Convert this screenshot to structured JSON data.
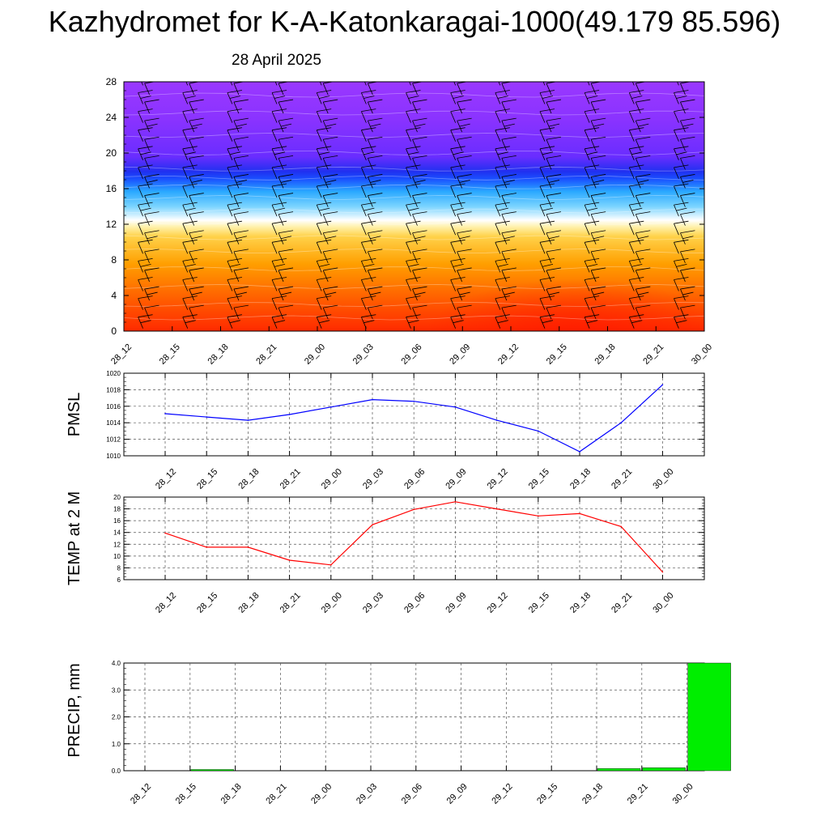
{
  "title": "Kazhydromet for K-A-Katonkaragai-1000(49.179 85.596)",
  "subtitle": "28 April 2025",
  "chart_data": [
    {
      "type": "heatmap",
      "title": "",
      "x_labels": [
        "28_12",
        "28_15",
        "28_18",
        "28_21",
        "29_00",
        "29_03",
        "29_06",
        "29_09",
        "29_12",
        "29_15",
        "29_18",
        "29_21",
        "30_00"
      ],
      "y_ticks": [
        0,
        4,
        8,
        12,
        16,
        20,
        24,
        28
      ],
      "ylim": [
        0,
        28
      ],
      "colormap": [
        "#ff2a00",
        "#ff9a00",
        "#ffe070",
        "#ffffff",
        "#30b8ff",
        "#2040ff",
        "#7a30ff",
        "#9a35ff"
      ],
      "description_of_field": "vertical cross-section with wind barbs"
    },
    {
      "type": "line",
      "ylabel": "PMSL",
      "x": [
        "28_12",
        "28_15",
        "28_18",
        "28_21",
        "29_00",
        "29_03",
        "29_06",
        "29_09",
        "29_12",
        "29_15",
        "29_18",
        "29_21",
        "30_00"
      ],
      "values": [
        1015.1,
        1014.7,
        1014.3,
        1015.0,
        1015.9,
        1016.8,
        1016.6,
        1015.9,
        1014.3,
        1013.0,
        1010.5,
        1014.0,
        1018.6
      ],
      "y_ticks": [
        1010,
        1012,
        1014,
        1016,
        1018,
        1020
      ],
      "ylim": [
        1010,
        1020
      ],
      "color": "#0000ff"
    },
    {
      "type": "line",
      "ylabel": "TEMP at 2 M",
      "x": [
        "28_12",
        "28_15",
        "28_18",
        "28_21",
        "29_00",
        "29_03",
        "29_06",
        "29_09",
        "29_12",
        "29_15",
        "29_18",
        "29_21",
        "30_00"
      ],
      "values": [
        13.9,
        11.5,
        11.5,
        9.3,
        8.5,
        15.3,
        17.9,
        19.2,
        18.0,
        16.8,
        17.2,
        15.0,
        7.3
      ],
      "y_ticks": [
        6,
        8,
        10,
        12,
        14,
        16,
        18,
        20
      ],
      "ylim": [
        6,
        20
      ],
      "color": "#ff0000"
    },
    {
      "type": "bar",
      "ylabel": "PRECIP, mm",
      "categories": [
        "28_12",
        "28_15",
        "28_18",
        "28_21",
        "29_00",
        "29_03",
        "29_06",
        "29_09",
        "29_12",
        "29_15",
        "29_18",
        "29_21",
        "30_00"
      ],
      "values": [
        0.0,
        0.02,
        0.0,
        0.0,
        0.0,
        0.0,
        0.0,
        0.0,
        0.0,
        0.0,
        0.08,
        0.11,
        4.0
      ],
      "y_ticks": [
        "0.0",
        "1.0",
        "2.0",
        "3.0",
        "4.0"
      ],
      "ylim": [
        0,
        4
      ],
      "color": "#00ee00"
    }
  ]
}
